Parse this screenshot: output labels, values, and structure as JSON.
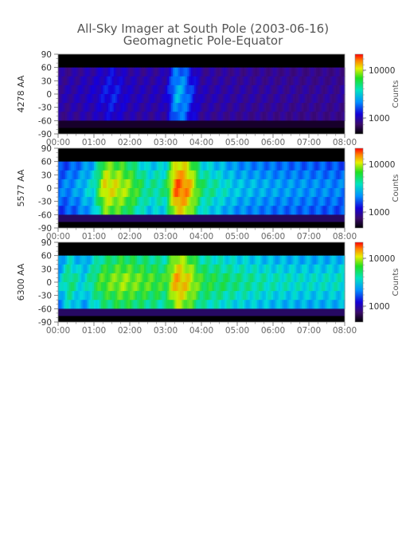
{
  "title": "All-Sky Imager at South Pole (2003-06-16)",
  "subtitle": "Geomagnetic Pole-Equator",
  "chart_data": [
    {
      "type": "heatmap",
      "ylabel": "4278 AA",
      "colorbar_label": "Counts",
      "colorbar_ticks": [
        "10000",
        "1000"
      ],
      "x_ticks": [
        "00:00",
        "01:00",
        "02:00",
        "03:00",
        "04:00",
        "05:00",
        "06:00",
        "07:00",
        "08:00"
      ],
      "y_ticks": [
        "90",
        "60",
        "30",
        "0",
        "-30",
        "-60",
        "-90"
      ],
      "xlim": [
        "00:00",
        "08:00"
      ],
      "ylim": [
        -90,
        90
      ],
      "color_scale": "log",
      "intensity_profile": [
        {
          "t": 0.0,
          "level": 0.2
        },
        {
          "t": 0.5,
          "level": 0.22
        },
        {
          "t": 1.0,
          "level": 0.25
        },
        {
          "t": 1.5,
          "level": 0.32
        },
        {
          "t": 2.0,
          "level": 0.24
        },
        {
          "t": 2.5,
          "level": 0.22
        },
        {
          "t": 3.0,
          "level": 0.24
        },
        {
          "t": 3.3,
          "level": 0.48
        },
        {
          "t": 3.5,
          "level": 0.45
        },
        {
          "t": 3.8,
          "level": 0.3
        },
        {
          "t": 4.0,
          "level": 0.22
        },
        {
          "t": 5.0,
          "level": 0.2
        },
        {
          "t": 6.0,
          "level": 0.19
        },
        {
          "t": 7.0,
          "level": 0.18
        },
        {
          "t": 8.0,
          "level": 0.18
        }
      ]
    },
    {
      "type": "heatmap",
      "ylabel": "5577 AA",
      "colorbar_label": "Counts",
      "colorbar_ticks": [
        "10000",
        "1000"
      ],
      "x_ticks": [
        "00:00",
        "01:00",
        "02:00",
        "03:00",
        "04:00",
        "05:00",
        "06:00",
        "07:00",
        "08:00"
      ],
      "y_ticks": [
        "90",
        "60",
        "30",
        "0",
        "-30",
        "-60",
        "-90"
      ],
      "xlim": [
        "00:00",
        "08:00"
      ],
      "ylim": [
        -90,
        90
      ],
      "color_scale": "log",
      "intensity_profile": [
        {
          "t": 0.0,
          "level": 0.4
        },
        {
          "t": 0.5,
          "level": 0.45
        },
        {
          "t": 1.0,
          "level": 0.55
        },
        {
          "t": 1.3,
          "level": 0.82
        },
        {
          "t": 1.7,
          "level": 0.78
        },
        {
          "t": 2.0,
          "level": 0.72
        },
        {
          "t": 2.5,
          "level": 0.58
        },
        {
          "t": 3.0,
          "level": 0.6
        },
        {
          "t": 3.3,
          "level": 0.95
        },
        {
          "t": 3.6,
          "level": 0.9
        },
        {
          "t": 4.0,
          "level": 0.62
        },
        {
          "t": 5.0,
          "level": 0.5
        },
        {
          "t": 6.0,
          "level": 0.46
        },
        {
          "t": 7.0,
          "level": 0.44
        },
        {
          "t": 8.0,
          "level": 0.42
        }
      ]
    },
    {
      "type": "heatmap",
      "ylabel": "6300 AA",
      "colorbar_label": "Counts",
      "colorbar_ticks": [
        "10000",
        "1000"
      ],
      "x_ticks": [
        "00:00",
        "01:00",
        "02:00",
        "03:00",
        "04:00",
        "05:00",
        "06:00",
        "07:00",
        "08:00"
      ],
      "y_ticks": [
        "90",
        "60",
        "30",
        "0",
        "-30",
        "-60",
        "-90"
      ],
      "xlim": [
        "00:00",
        "08:00"
      ],
      "ylim": [
        -90,
        90
      ],
      "color_scale": "log",
      "intensity_profile": [
        {
          "t": 0.0,
          "level": 0.48
        },
        {
          "t": 0.3,
          "level": 0.62
        },
        {
          "t": 0.7,
          "level": 0.52
        },
        {
          "t": 1.2,
          "level": 0.68
        },
        {
          "t": 1.8,
          "level": 0.74
        },
        {
          "t": 2.3,
          "level": 0.7
        },
        {
          "t": 3.0,
          "level": 0.66
        },
        {
          "t": 3.3,
          "level": 0.88
        },
        {
          "t": 3.6,
          "level": 0.82
        },
        {
          "t": 4.0,
          "level": 0.66
        },
        {
          "t": 5.0,
          "level": 0.6
        },
        {
          "t": 6.0,
          "level": 0.56
        },
        {
          "t": 7.0,
          "level": 0.54
        },
        {
          "t": 8.0,
          "level": 0.55
        }
      ]
    }
  ]
}
